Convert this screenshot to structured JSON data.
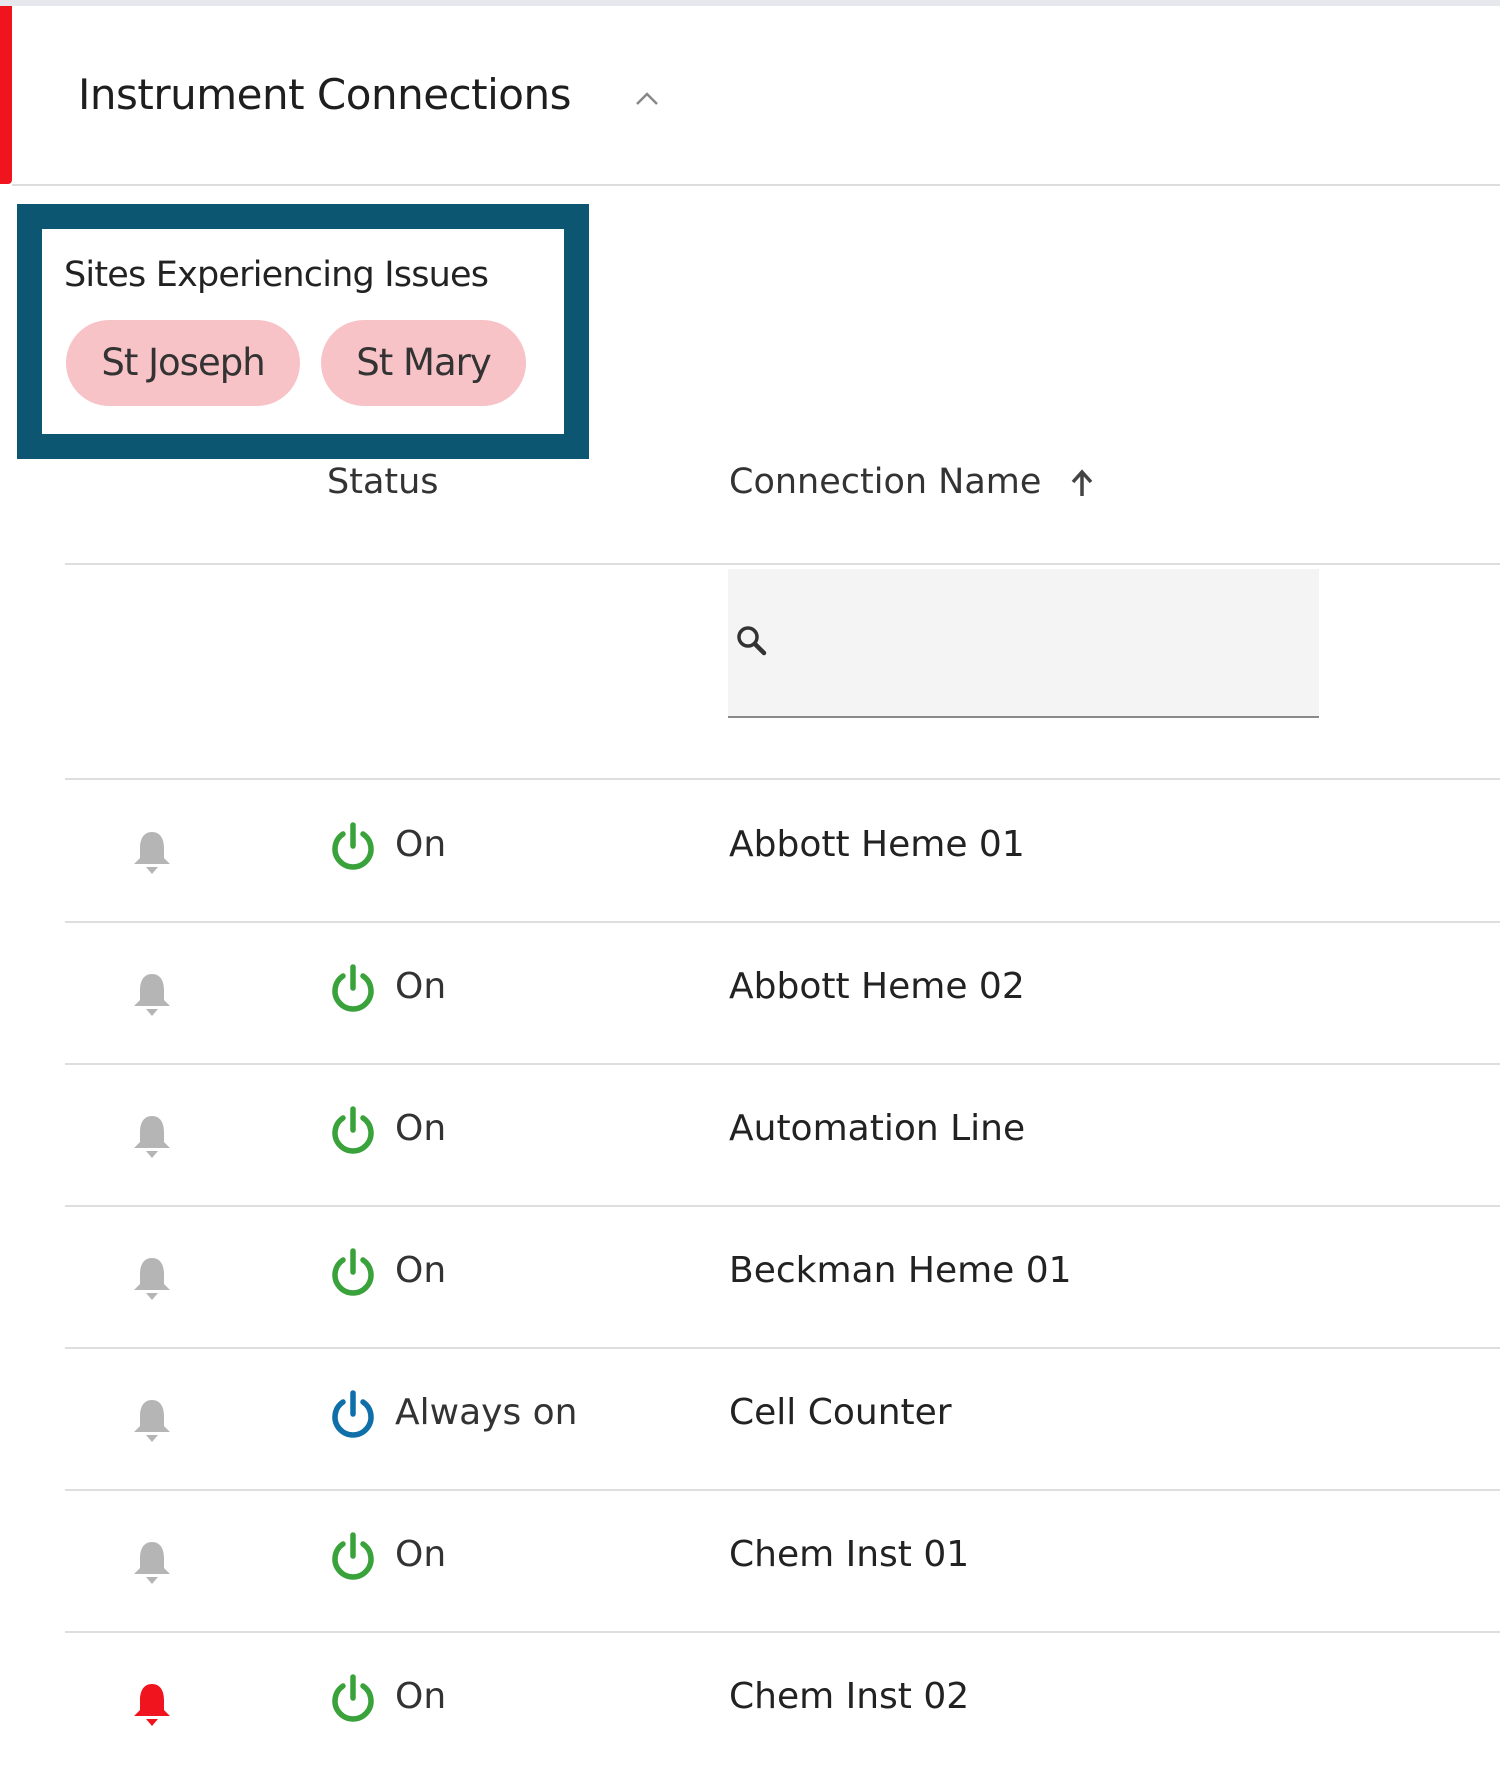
{
  "section": {
    "title": "Instrument Connections",
    "collapse_icon": "chevron-up-icon",
    "accent": "#f0141e"
  },
  "sites_issues": {
    "title": "Sites Experiencing Issues",
    "sites": [
      "St Joseph",
      "St Mary"
    ],
    "border_color": "#0c5672",
    "chip_color": "#f7c3c7"
  },
  "table": {
    "headers": {
      "status": "Status",
      "name": "Connection Name",
      "sort": "ascending"
    },
    "search": {
      "value": "",
      "placeholder": ""
    },
    "rows": [
      {
        "alert": false,
        "status": "On",
        "status_type": "on",
        "name": "Abbott Heme 01"
      },
      {
        "alert": false,
        "status": "On",
        "status_type": "on",
        "name": "Abbott Heme 02"
      },
      {
        "alert": false,
        "status": "On",
        "status_type": "on",
        "name": "Automation Line"
      },
      {
        "alert": false,
        "status": "On",
        "status_type": "on",
        "name": "Beckman Heme 01"
      },
      {
        "alert": false,
        "status": "Always on",
        "status_type": "always",
        "name": "Cell Counter"
      },
      {
        "alert": false,
        "status": "On",
        "status_type": "on",
        "name": "Chem Inst 01"
      },
      {
        "alert": true,
        "status": "On",
        "status_type": "on",
        "name": "Chem Inst 02"
      }
    ]
  },
  "colors": {
    "on": "#3aa23a",
    "always": "#0f6fa8",
    "bell_idle": "#b5b5b5",
    "bell_alert": "#f0141e"
  }
}
